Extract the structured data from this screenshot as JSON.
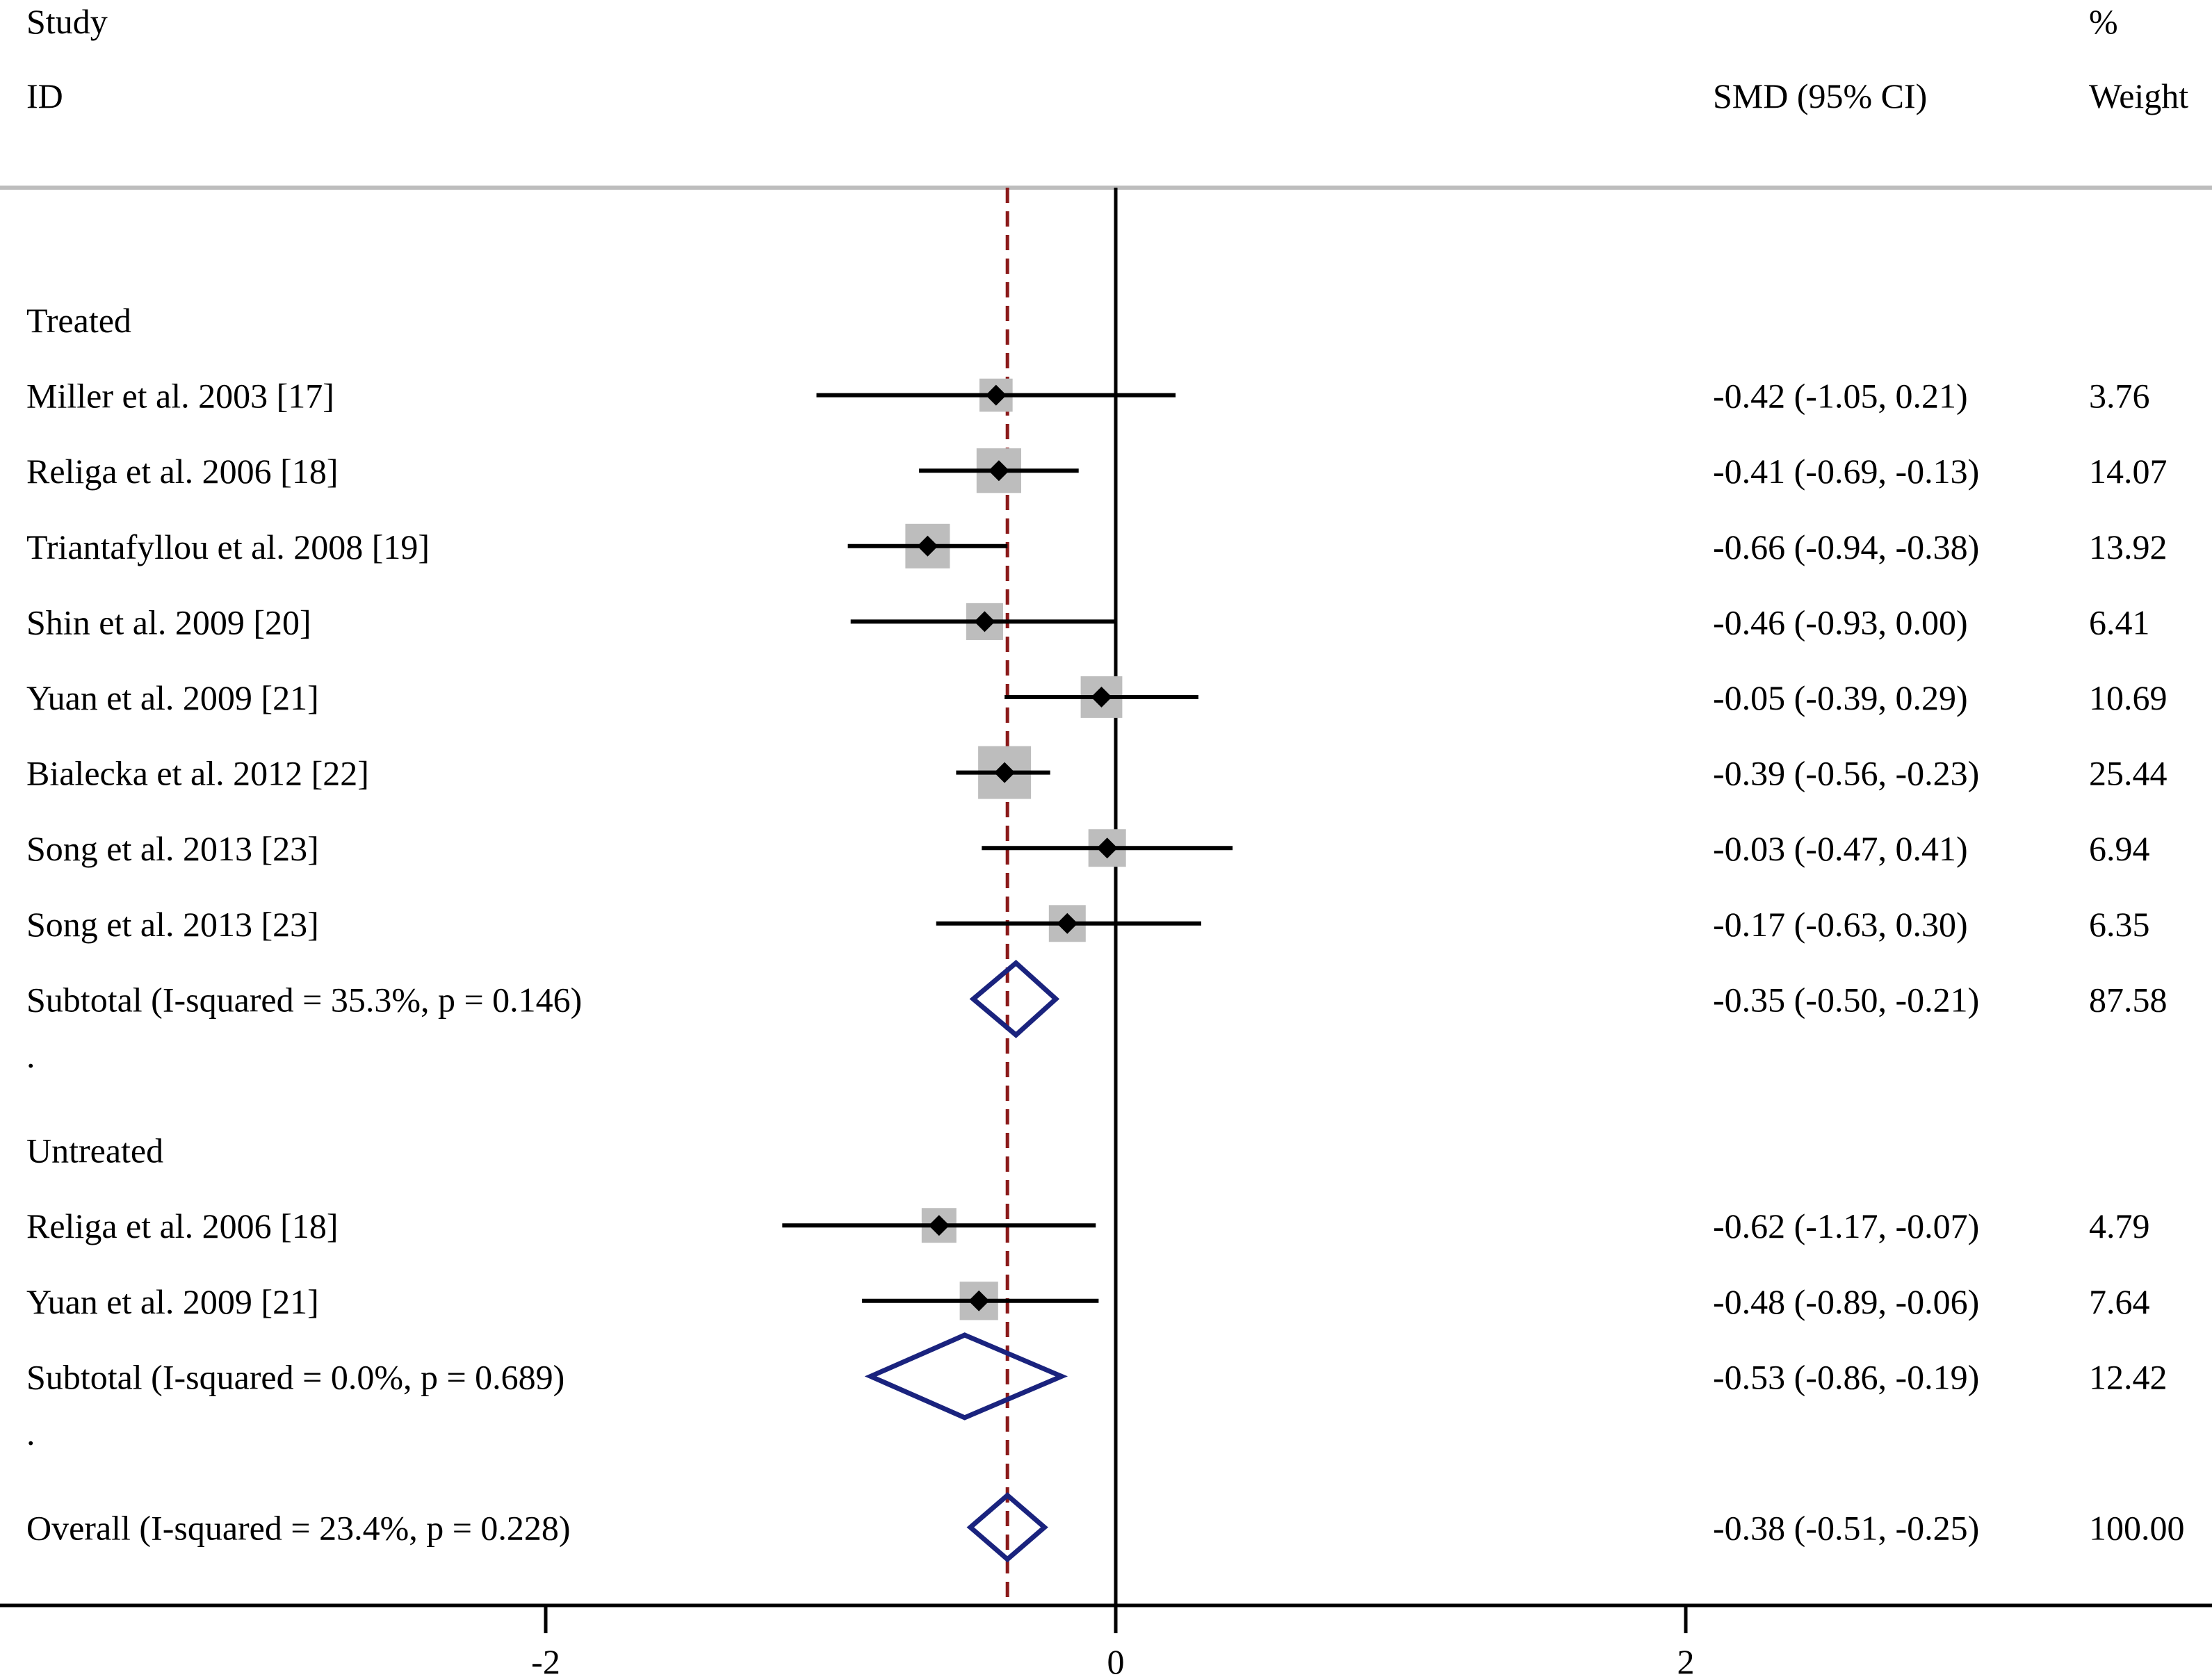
{
  "chart_data": {
    "type": "forest",
    "header": {
      "study_line1": "Study",
      "study_line2": "ID",
      "effect_header": "SMD (95% CI)",
      "weight_line1": "%",
      "weight_line2": "Weight"
    },
    "x_axis": {
      "ticks": [
        {
          "value": -2,
          "label": "-2"
        },
        {
          "value": 0,
          "label": "0"
        },
        {
          "value": 2,
          "label": "2"
        }
      ],
      "range": [
        -4,
        3.8
      ],
      "null_line": 0,
      "overall_line": -0.38
    },
    "rows": [
      {
        "kind": "group",
        "label": "Treated"
      },
      {
        "kind": "study",
        "label": "Miller et al. 2003 [17]",
        "est": -0.42,
        "lo": -1.05,
        "hi": 0.21,
        "ci_text": "-0.42 (-1.05, 0.21)",
        "weight": 3.76,
        "weight_text": "3.76"
      },
      {
        "kind": "study",
        "label": "Religa et al. 2006 [18]",
        "est": -0.41,
        "lo": -0.69,
        "hi": -0.13,
        "ci_text": "-0.41 (-0.69, -0.13)",
        "weight": 14.07,
        "weight_text": "14.07"
      },
      {
        "kind": "study",
        "label": "Triantafyllou et al. 2008 [19]",
        "est": -0.66,
        "lo": -0.94,
        "hi": -0.38,
        "ci_text": "-0.66 (-0.94, -0.38)",
        "weight": 13.92,
        "weight_text": "13.92"
      },
      {
        "kind": "study",
        "label": "Shin et al. 2009 [20]",
        "est": -0.46,
        "lo": -0.93,
        "hi": 0.0,
        "ci_text": "-0.46 (-0.93, 0.00)",
        "weight": 6.41,
        "weight_text": "6.41"
      },
      {
        "kind": "study",
        "label": "Yuan et al. 2009 [21]",
        "est": -0.05,
        "lo": -0.39,
        "hi": 0.29,
        "ci_text": "-0.05 (-0.39, 0.29)",
        "weight": 10.69,
        "weight_text": "10.69"
      },
      {
        "kind": "study",
        "label": "Bialecka et al. 2012 [22]",
        "est": -0.39,
        "lo": -0.56,
        "hi": -0.23,
        "ci_text": "-0.39 (-0.56, -0.23)",
        "weight": 25.44,
        "weight_text": "25.44"
      },
      {
        "kind": "study",
        "label": "Song et al. 2013 [23]",
        "est": -0.03,
        "lo": -0.47,
        "hi": 0.41,
        "ci_text": "-0.03 (-0.47, 0.41)",
        "weight": 6.94,
        "weight_text": "6.94"
      },
      {
        "kind": "study",
        "label": "Song et al. 2013 [23]",
        "est": -0.17,
        "lo": -0.63,
        "hi": 0.3,
        "ci_text": "-0.17 (-0.63, 0.30)",
        "weight": 6.35,
        "weight_text": "6.35"
      },
      {
        "kind": "subtotal",
        "label": "Subtotal  (I-squared = 35.3%, p = 0.146)",
        "est": -0.35,
        "lo": -0.5,
        "hi": -0.21,
        "ci_text": "-0.35 (-0.50, -0.21)",
        "weight": 87.58,
        "weight_text": "87.58"
      },
      {
        "kind": "spacer",
        "label": "."
      },
      {
        "kind": "group",
        "label": "Untreated"
      },
      {
        "kind": "study",
        "label": "Religa et al. 2006 [18]",
        "est": -0.62,
        "lo": -1.17,
        "hi": -0.07,
        "ci_text": "-0.62 (-1.17, -0.07)",
        "weight": 4.79,
        "weight_text": "4.79"
      },
      {
        "kind": "study",
        "label": "Yuan et al. 2009 [21]",
        "est": -0.48,
        "lo": -0.89,
        "hi": -0.06,
        "ci_text": "-0.48 (-0.89, -0.06)",
        "weight": 7.64,
        "weight_text": "7.64"
      },
      {
        "kind": "subtotal",
        "label": "Subtotal  (I-squared = 0.0%, p = 0.689)",
        "est": -0.53,
        "lo": -0.86,
        "hi": -0.19,
        "ci_text": "-0.53 (-0.86, -0.19)",
        "weight": 12.42,
        "weight_text": "12.42"
      },
      {
        "kind": "spacer",
        "label": "."
      },
      {
        "kind": "overall",
        "label": "Overall  (I-squared = 23.4%, p = 0.228)",
        "est": -0.38,
        "lo": -0.51,
        "hi": -0.25,
        "ci_text": "-0.38 (-0.51, -0.25)",
        "weight": 100.0,
        "weight_text": "100.00"
      }
    ],
    "colors": {
      "ci_line": "#000000",
      "weight_box": "#bdbdbd",
      "diamond": "#1a237e",
      "overall_line": "#8b1a1a",
      "axis": "#000000",
      "header_rule": "#bdbdbd"
    }
  }
}
